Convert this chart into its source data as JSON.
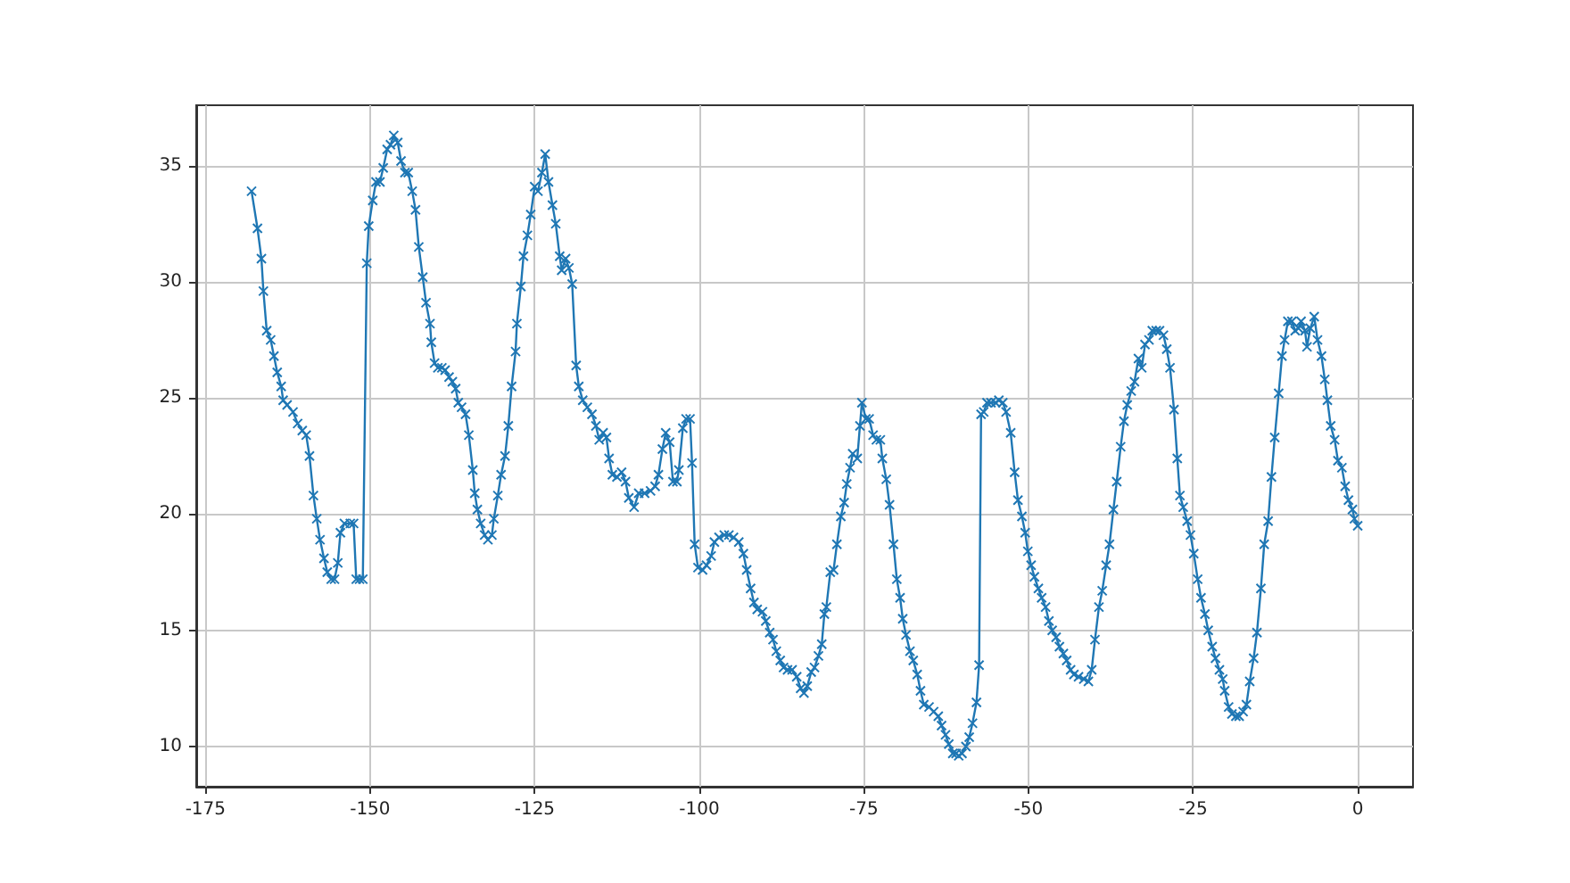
{
  "chart_data": {
    "type": "line",
    "marker": "cross",
    "grid": true,
    "xlim": [
      -176.4,
      8.4
    ],
    "ylim": [
      8.27,
      37.6
    ],
    "xticks": [
      -175,
      -150,
      -125,
      -100,
      -75,
      -50,
      -25,
      0
    ],
    "yticks": [
      10,
      15,
      20,
      25,
      30,
      35
    ],
    "series": [
      {
        "color": "#1f77b4",
        "x": [
          -168.0,
          -167.1,
          -166.5,
          -166.2,
          -165.7,
          -165.1,
          -164.6,
          -164.1,
          -163.5,
          -163.2,
          -162.6,
          -161.7,
          -161.0,
          -160.3,
          -159.7,
          -159.2,
          -158.6,
          -158.1,
          -157.6,
          -157.0,
          -156.5,
          -155.9,
          -155.4,
          -154.9,
          -154.5,
          -153.9,
          -153.0,
          -152.5,
          -152.1,
          -151.6,
          -151.1,
          -150.5,
          -150.2,
          -149.6,
          -149.1,
          -148.5,
          -148.0,
          -147.4,
          -146.9,
          -146.4,
          -145.8,
          -145.3,
          -144.7,
          -144.2,
          -143.6,
          -143.1,
          -142.6,
          -142.0,
          -141.5,
          -140.9,
          -140.7,
          -140.2,
          -139.7,
          -139.1,
          -138.6,
          -138.0,
          -137.5,
          -137.0,
          -136.6,
          -136.1,
          -135.5,
          -135.0,
          -134.4,
          -134.1,
          -133.7,
          -133.2,
          -132.6,
          -132.1,
          -131.5,
          -131.2,
          -130.6,
          -130.1,
          -129.5,
          -129.0,
          -128.5,
          -127.9,
          -127.7,
          -127.1,
          -126.7,
          -126.1,
          -125.6,
          -125.0,
          -124.5,
          -123.9,
          -123.4,
          -122.9,
          -122.3,
          -121.8,
          -121.2,
          -120.9,
          -120.3,
          -119.8,
          -119.3,
          -118.7,
          -118.3,
          -117.7,
          -117.0,
          -116.3,
          -115.7,
          -115.2,
          -114.6,
          -114.1,
          -113.7,
          -113.2,
          -112.5,
          -111.8,
          -111.2,
          -110.7,
          -109.9,
          -109.2,
          -108.3,
          -107.4,
          -106.7,
          -106.2,
          -105.6,
          -105.1,
          -104.5,
          -104.0,
          -103.4,
          -103.1,
          -102.5,
          -102.0,
          -101.4,
          -101.1,
          -100.7,
          -100.2,
          -99.5,
          -98.9,
          -98.2,
          -97.7,
          -97.0,
          -96.2,
          -95.5,
          -94.8,
          -94.0,
          -93.3,
          -92.8,
          -92.2,
          -91.7,
          -91.2,
          -90.4,
          -89.9,
          -89.3,
          -88.8,
          -88.3,
          -87.7,
          -87.2,
          -86.6,
          -85.9,
          -85.2,
          -84.6,
          -84.1,
          -83.6,
          -83.0,
          -82.5,
          -81.9,
          -81.4,
          -81.0,
          -80.7,
          -80.1,
          -79.6,
          -79.1,
          -78.5,
          -78.0,
          -77.6,
          -77.1,
          -76.7,
          -76.0,
          -75.6,
          -75.3,
          -74.7,
          -74.2,
          -73.6,
          -73.1,
          -72.5,
          -72.2,
          -71.6,
          -71.1,
          -70.5,
          -70.0,
          -69.5,
          -69.1,
          -68.6,
          -68.0,
          -67.5,
          -66.9,
          -66.4,
          -65.9,
          -65.1,
          -64.4,
          -63.7,
          -63.2,
          -62.6,
          -62.1,
          -61.5,
          -61.0,
          -60.6,
          -60.1,
          -59.5,
          -59.0,
          -58.5,
          -57.9,
          -57.5,
          -57.2,
          -56.8,
          -56.3,
          -55.7,
          -55.0,
          -54.5,
          -53.9,
          -53.4,
          -52.7,
          -52.1,
          -51.6,
          -51.0,
          -50.5,
          -50.1,
          -49.6,
          -49.1,
          -48.5,
          -48.0,
          -47.4,
          -46.9,
          -46.4,
          -45.8,
          -45.3,
          -44.7,
          -44.2,
          -43.6,
          -43.1,
          -42.4,
          -41.6,
          -40.9,
          -40.4,
          -39.9,
          -39.3,
          -38.8,
          -38.2,
          -37.7,
          -37.1,
          -36.6,
          -36.0,
          -35.5,
          -35.0,
          -34.4,
          -33.9,
          -33.3,
          -32.8,
          -32.3,
          -31.7,
          -31.2,
          -30.6,
          -30.1,
          -29.5,
          -29.0,
          -28.5,
          -27.9,
          -27.4,
          -27.0,
          -26.5,
          -25.9,
          -25.4,
          -24.9,
          -24.3,
          -23.8,
          -23.2,
          -22.7,
          -22.1,
          -21.6,
          -21.0,
          -20.5,
          -20.2,
          -19.6,
          -19.1,
          -18.5,
          -18.0,
          -17.4,
          -16.9,
          -16.4,
          -15.8,
          -15.3,
          -14.7,
          -14.2,
          -13.6,
          -13.1,
          -12.6,
          -12.0,
          -11.5,
          -11.1,
          -10.6,
          -10.0,
          -9.5,
          -9.0,
          -8.6,
          -8.0,
          -7.7,
          -7.2,
          -6.6,
          -6.1,
          -5.5,
          -5.0,
          -4.6,
          -4.1,
          -3.5,
          -3.0,
          -2.4,
          -1.9,
          -1.4,
          -0.8,
          -0.5,
          0.0
        ],
        "values": [
          33.9,
          32.3,
          31.0,
          29.6,
          27.9,
          27.5,
          26.8,
          26.1,
          25.5,
          24.9,
          24.7,
          24.4,
          23.9,
          23.6,
          23.4,
          22.5,
          20.8,
          19.8,
          18.9,
          18.1,
          17.5,
          17.2,
          17.2,
          17.9,
          19.2,
          19.6,
          19.6,
          19.6,
          17.2,
          17.2,
          17.2,
          30.8,
          32.4,
          33.5,
          34.3,
          34.3,
          34.9,
          35.7,
          35.9,
          36.3,
          36.0,
          35.2,
          34.7,
          34.7,
          33.9,
          33.1,
          31.5,
          30.2,
          29.1,
          28.2,
          27.4,
          26.5,
          26.3,
          26.3,
          26.2,
          25.9,
          25.7,
          25.4,
          24.8,
          24.6,
          24.3,
          23.4,
          21.9,
          20.9,
          20.2,
          19.6,
          19.1,
          18.9,
          19.1,
          19.8,
          20.8,
          21.7,
          22.5,
          23.8,
          25.5,
          27.0,
          28.2,
          29.8,
          31.1,
          32.0,
          32.9,
          34.1,
          33.9,
          34.7,
          35.5,
          34.3,
          33.3,
          32.5,
          31.1,
          30.5,
          31.0,
          30.6,
          29.9,
          26.4,
          25.5,
          24.9,
          24.6,
          24.3,
          23.8,
          23.2,
          23.5,
          23.3,
          22.4,
          21.7,
          21.6,
          21.8,
          21.4,
          20.7,
          20.3,
          20.9,
          20.9,
          21.0,
          21.2,
          21.7,
          22.8,
          23.5,
          23.1,
          21.4,
          21.4,
          21.9,
          23.7,
          24.1,
          24.1,
          22.2,
          18.7,
          17.7,
          17.6,
          17.8,
          18.2,
          18.8,
          19.0,
          19.1,
          19.1,
          19.0,
          18.8,
          18.3,
          17.6,
          16.8,
          16.2,
          15.9,
          15.8,
          15.4,
          14.9,
          14.6,
          14.1,
          13.7,
          13.4,
          13.3,
          13.3,
          13.0,
          12.5,
          12.3,
          12.6,
          13.2,
          13.4,
          13.9,
          14.4,
          15.7,
          16.0,
          17.5,
          17.6,
          18.7,
          19.9,
          20.5,
          21.3,
          22.0,
          22.6,
          22.4,
          23.8,
          24.8,
          24.1,
          24.1,
          23.4,
          23.2,
          23.2,
          22.4,
          21.5,
          20.4,
          18.7,
          17.2,
          16.4,
          15.5,
          14.8,
          14.1,
          13.7,
          13.1,
          12.4,
          11.8,
          11.7,
          11.5,
          11.3,
          10.9,
          10.5,
          10.1,
          9.7,
          9.7,
          9.6,
          9.7,
          10.0,
          10.4,
          11.0,
          11.9,
          13.5,
          24.3,
          24.4,
          24.8,
          24.8,
          24.8,
          24.9,
          24.8,
          24.4,
          23.5,
          21.8,
          20.6,
          19.9,
          19.2,
          18.4,
          17.8,
          17.3,
          16.8,
          16.4,
          16.0,
          15.4,
          15.0,
          14.7,
          14.3,
          14.0,
          13.7,
          13.3,
          13.1,
          13.0,
          12.9,
          12.8,
          13.3,
          14.6,
          16.0,
          16.7,
          17.8,
          18.7,
          20.2,
          21.4,
          22.9,
          24.0,
          24.7,
          25.3,
          25.7,
          26.7,
          26.3,
          27.3,
          27.5,
          27.9,
          27.9,
          27.9,
          27.7,
          27.1,
          26.3,
          24.5,
          22.4,
          20.8,
          20.3,
          19.7,
          19.1,
          18.3,
          17.2,
          16.4,
          15.7,
          15.0,
          14.3,
          13.8,
          13.3,
          12.9,
          12.4,
          11.7,
          11.4,
          11.3,
          11.3,
          11.5,
          11.8,
          12.8,
          13.8,
          14.9,
          16.8,
          18.7,
          19.7,
          21.6,
          23.3,
          25.2,
          26.8,
          27.5,
          28.3,
          28.3,
          27.9,
          28.0,
          28.3,
          27.9,
          27.2,
          28.0,
          28.5,
          27.5,
          26.8,
          25.8,
          24.9,
          23.8,
          23.2,
          22.3,
          22.0,
          21.2,
          20.6,
          20.2,
          19.8,
          19.5
        ]
      }
    ]
  }
}
